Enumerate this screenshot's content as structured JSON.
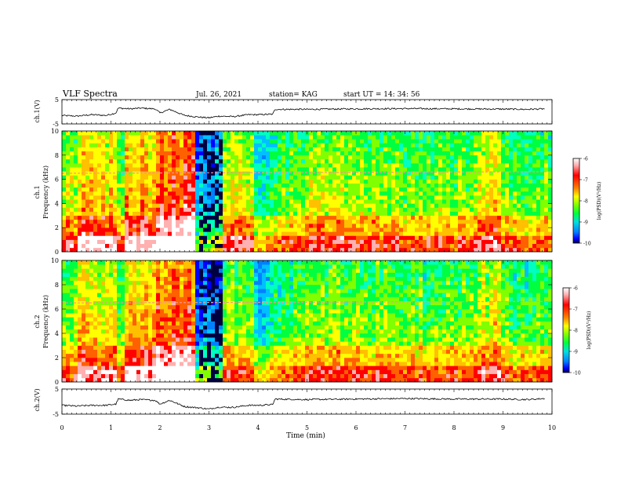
{
  "header": {
    "title": "VLF Spectra",
    "date": "Jul. 26, 2021",
    "station": "station= KAG",
    "start": "start UT = 14: 34: 56"
  },
  "colors": {
    "scale": [
      "#000040",
      "#0000ff",
      "#0080ff",
      "#00c0ff",
      "#00ffc0",
      "#00ff40",
      "#80ff00",
      "#ffff00",
      "#ffc000",
      "#ff6000",
      "#ff0000",
      "#ffb0b0",
      "#ffffff"
    ]
  },
  "chart_data": [
    {
      "type": "line",
      "name": "ch.1 waveform",
      "ylabel": "ch.1(V)",
      "ylim": [
        -5,
        5
      ],
      "yticks": [
        "5",
        "-5"
      ],
      "xlim": [
        0,
        10
      ],
      "x": [
        0,
        0.3,
        0.6,
        0.9,
        1.1,
        1.15,
        1.4,
        1.6,
        1.9,
        2.0,
        2.2,
        2.5,
        2.8,
        3.0,
        3.2,
        3.5,
        3.8,
        4.0,
        4.3,
        4.35,
        5,
        6,
        7,
        8,
        9,
        9.5,
        9.85
      ],
      "values": [
        -1.5,
        -1.8,
        -1.2,
        -1.5,
        -0.5,
        1.5,
        1.2,
        1.5,
        1.2,
        -0.5,
        1.0,
        -1.5,
        -2.2,
        -2.5,
        -1.8,
        -2.0,
        -1.2,
        -1.2,
        -1.0,
        1.0,
        1.0,
        1.2,
        1.3,
        1.2,
        1.1,
        1.0,
        1.2
      ]
    },
    {
      "type": "heatmap",
      "name": "ch.1 spectrogram",
      "ylabel_top": "ch.1",
      "ylabel": "Frequency (kHz)",
      "yticks": [
        "0",
        "2",
        "4",
        "6",
        "8",
        "10"
      ],
      "ylim": [
        0,
        10
      ],
      "xlim": [
        0,
        10
      ],
      "tone_khz": 6.5,
      "colorbar": {
        "label": "log(PSD)(V²/Hz)",
        "ticks": [
          "-6",
          "-7",
          "-8",
          "-9",
          "-10"
        ],
        "range": [
          -10,
          -6
        ]
      }
    },
    {
      "type": "heatmap",
      "name": "ch.2 spectrogram",
      "ylabel_top": "ch.2",
      "ylabel": "Frequency (kHz)",
      "yticks": [
        "0",
        "2",
        "4",
        "6",
        "8",
        "10"
      ],
      "ylim": [
        0,
        10
      ],
      "xlim": [
        0,
        10
      ],
      "tone_khz": 6.5,
      "colorbar": {
        "label": "log(PSD)(V²/Hz)",
        "ticks": [
          "-6",
          "-7",
          "-8",
          "-9",
          "-10"
        ],
        "range": [
          -10,
          -6
        ]
      }
    },
    {
      "type": "line",
      "name": "ch.2 waveform",
      "ylabel": "ch.2(V)",
      "ylim": [
        -5,
        5
      ],
      "yticks": [
        "5",
        "-5"
      ],
      "xlim": [
        0,
        10
      ],
      "x": [
        0,
        0.3,
        0.6,
        0.9,
        1.1,
        1.15,
        1.4,
        1.6,
        1.9,
        2.0,
        2.2,
        2.5,
        2.8,
        3.0,
        3.2,
        3.5,
        3.8,
        4.0,
        4.3,
        4.35,
        5,
        6,
        7,
        8,
        9,
        9.5,
        9.85
      ],
      "values": [
        -1.5,
        -1.8,
        -1.5,
        -1.5,
        -1.0,
        1.0,
        0.5,
        0.8,
        0.5,
        -1.0,
        0.5,
        -2.0,
        -2.5,
        -3.0,
        -2.2,
        -2.3,
        -1.5,
        -1.5,
        -1.2,
        1.0,
        0.8,
        1.0,
        1.2,
        1.0,
        1.0,
        0.8,
        1.2
      ]
    }
  ],
  "xaxis": {
    "label": "Time (min)",
    "ticks": [
      "0",
      "1",
      "2",
      "3",
      "4",
      "5",
      "6",
      "7",
      "8",
      "9",
      "10"
    ]
  }
}
